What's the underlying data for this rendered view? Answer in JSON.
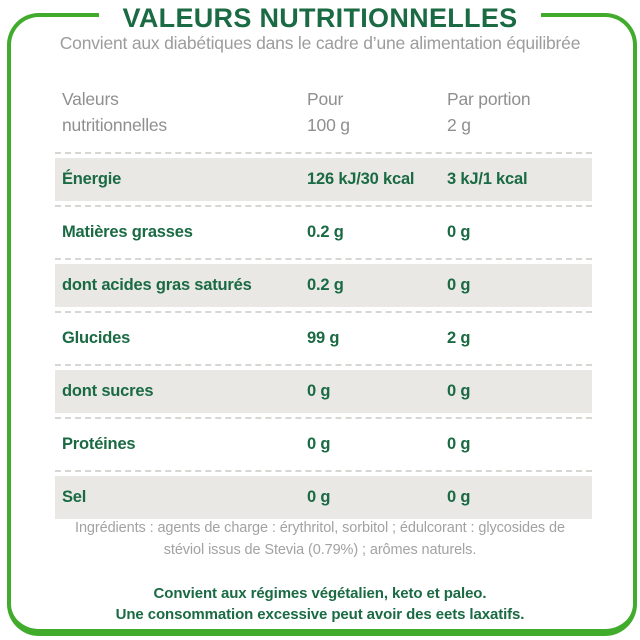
{
  "header": {
    "title": "VALEURS NUTRITIONNELLES",
    "subtitle": "Convient aux diabétiques dans le cadre d’une alimentation équilibrée"
  },
  "table": {
    "columns": [
      {
        "line1": "Valeurs",
        "line2": "nutritionnelles"
      },
      {
        "line1": "Pour",
        "line2": "100 g"
      },
      {
        "line1": "Par portion",
        "line2": "2 g"
      }
    ],
    "rows": [
      {
        "label": "Énergie",
        "per100": "126 kJ/30 kcal",
        "portion": "3 kJ/1 kcal",
        "shaded": true
      },
      {
        "label": "Matières grasses",
        "per100": "0.2 g",
        "portion": "0 g",
        "shaded": false
      },
      {
        "label": "dont acides gras saturés",
        "per100": "0.2 g",
        "portion": "0 g",
        "shaded": true
      },
      {
        "label": "Glucides",
        "per100": "99 g",
        "portion": "2 g",
        "shaded": false
      },
      {
        "label": "dont sucres",
        "per100": "0 g",
        "portion": "0 g",
        "shaded": true
      },
      {
        "label": "Protéines",
        "per100": "0 g",
        "portion": "0 g",
        "shaded": false
      },
      {
        "label": "Sel",
        "per100": "0 g",
        "portion": "0 g",
        "shaded": true
      }
    ]
  },
  "ingredients": {
    "line1": "Ingrédients : agents de charge : érythritol, sorbitol ; édulcorant : glycosides de",
    "line2": "stéviol issus de Stevia (0.79%) ; arômes naturels."
  },
  "footer": {
    "line1": "Convient aux régimes végétalien, keto et paleo.",
    "line2": "Une consommation excessive peut avoir des eets laxatifs."
  },
  "colors": {
    "dark_green": "#1a6a43",
    "bright_green": "#41ab2c",
    "gray_text": "#9c9c9c",
    "header_gray": "#8f8f8f",
    "row_shade": "#e9e8e5",
    "dash_gray": "#d6d6d3",
    "ingredients_gray": "#a2a2a2"
  }
}
